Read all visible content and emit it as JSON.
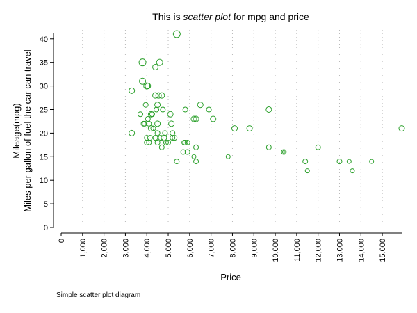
{
  "chart_data": {
    "type": "scatter",
    "title_parts": [
      {
        "text": "This is ",
        "italic": false
      },
      {
        "text": "scatter plot",
        "italic": true
      },
      {
        "text": " for mpg and price",
        "italic": false
      }
    ],
    "xlabel": "Price",
    "ylabel_lines": [
      "Mileage(mpg)",
      "Miles per gallon of fuel the car can travel"
    ],
    "note": "Simple scatter plot diagram",
    "xlim": [
      0,
      15906
    ],
    "ylim": [
      0,
      41
    ],
    "x_ticks": [
      0,
      1000,
      2000,
      3000,
      4000,
      5000,
      6000,
      7000,
      8000,
      9000,
      10000,
      11000,
      12000,
      13000,
      14000,
      15000
    ],
    "x_tick_labels": [
      "0",
      "1,000",
      "2,000",
      "3,000",
      "4,000",
      "5,000",
      "6,000",
      "7,000",
      "8,000",
      "9,000",
      "10,000",
      "11,000",
      "12,000",
      "13,000",
      "14,000",
      "15,000"
    ],
    "y_ticks": [
      0,
      5,
      10,
      15,
      20,
      25,
      30,
      35,
      40
    ],
    "y_tick_labels": [
      "0",
      "5",
      "10",
      "15",
      "20",
      "25",
      "30",
      "35",
      "40"
    ],
    "grid": "vertical dotted",
    "marker_color": "#2ca02c",
    "points": [
      {
        "x": 5400,
        "y": 41,
        "r": 5
      },
      {
        "x": 3800,
        "y": 35,
        "r": 5
      },
      {
        "x": 4600,
        "y": 35,
        "r": 4.5
      },
      {
        "x": 4400,
        "y": 34,
        "r": 4
      },
      {
        "x": 3800,
        "y": 31,
        "r": 4.5
      },
      {
        "x": 4000,
        "y": 30,
        "r": 4.5
      },
      {
        "x": 4050,
        "y": 30,
        "r": 4
      },
      {
        "x": 3300,
        "y": 29,
        "r": 4
      },
      {
        "x": 4400,
        "y": 28,
        "r": 4
      },
      {
        "x": 4550,
        "y": 28,
        "r": 4
      },
      {
        "x": 4700,
        "y": 28,
        "r": 4
      },
      {
        "x": 3950,
        "y": 26,
        "r": 3.5
      },
      {
        "x": 4500,
        "y": 26,
        "r": 4
      },
      {
        "x": 6500,
        "y": 26,
        "r": 4
      },
      {
        "x": 4450,
        "y": 25,
        "r": 3.5
      },
      {
        "x": 4750,
        "y": 25,
        "r": 3.5
      },
      {
        "x": 5800,
        "y": 25,
        "r": 3.5
      },
      {
        "x": 6900,
        "y": 25,
        "r": 3.5
      },
      {
        "x": 9700,
        "y": 25,
        "r": 4
      },
      {
        "x": 3700,
        "y": 24,
        "r": 3.5
      },
      {
        "x": 4200,
        "y": 24,
        "r": 4
      },
      {
        "x": 4250,
        "y": 24,
        "r": 3.5
      },
      {
        "x": 5100,
        "y": 24,
        "r": 4
      },
      {
        "x": 4050,
        "y": 23,
        "r": 3.5
      },
      {
        "x": 6200,
        "y": 23,
        "r": 4
      },
      {
        "x": 6300,
        "y": 23,
        "r": 4
      },
      {
        "x": 7100,
        "y": 23,
        "r": 4
      },
      {
        "x": 3850,
        "y": 22,
        "r": 3.5
      },
      {
        "x": 3900,
        "y": 22,
        "r": 3.5
      },
      {
        "x": 4100,
        "y": 22,
        "r": 3.5
      },
      {
        "x": 4500,
        "y": 22,
        "r": 4
      },
      {
        "x": 5150,
        "y": 22,
        "r": 4
      },
      {
        "x": 4200,
        "y": 21,
        "r": 4
      },
      {
        "x": 4300,
        "y": 21,
        "r": 3.5
      },
      {
        "x": 8100,
        "y": 21,
        "r": 4
      },
      {
        "x": 8800,
        "y": 21,
        "r": 4
      },
      {
        "x": 15906,
        "y": 21,
        "r": 4
      },
      {
        "x": 3300,
        "y": 20,
        "r": 4
      },
      {
        "x": 4500,
        "y": 20,
        "r": 3.5
      },
      {
        "x": 4850,
        "y": 20,
        "r": 3.5
      },
      {
        "x": 5200,
        "y": 20,
        "r": 3.5
      },
      {
        "x": 4000,
        "y": 19,
        "r": 3.5
      },
      {
        "x": 4150,
        "y": 19,
        "r": 3.5
      },
      {
        "x": 4400,
        "y": 19,
        "r": 3.5
      },
      {
        "x": 4650,
        "y": 19,
        "r": 3.5
      },
      {
        "x": 4800,
        "y": 19,
        "r": 4
      },
      {
        "x": 5200,
        "y": 19,
        "r": 3.5
      },
      {
        "x": 5300,
        "y": 19,
        "r": 3.5
      },
      {
        "x": 4000,
        "y": 18,
        "r": 3.5
      },
      {
        "x": 4100,
        "y": 18,
        "r": 3.5
      },
      {
        "x": 4500,
        "y": 18,
        "r": 3.5
      },
      {
        "x": 4900,
        "y": 18,
        "r": 3.5
      },
      {
        "x": 5000,
        "y": 18,
        "r": 3.5
      },
      {
        "x": 5750,
        "y": 18,
        "r": 3.5
      },
      {
        "x": 5800,
        "y": 18,
        "r": 3.5
      },
      {
        "x": 5900,
        "y": 18,
        "r": 3.5
      },
      {
        "x": 4700,
        "y": 17,
        "r": 3.5
      },
      {
        "x": 6300,
        "y": 17,
        "r": 3.5
      },
      {
        "x": 9700,
        "y": 17,
        "r": 3.5
      },
      {
        "x": 12000,
        "y": 17,
        "r": 3.5
      },
      {
        "x": 5700,
        "y": 16,
        "r": 3.5
      },
      {
        "x": 5900,
        "y": 16,
        "r": 3.5
      },
      {
        "x": 10400,
        "y": 16,
        "r": 3.5
      },
      {
        "x": 10400,
        "y": 16,
        "r": 2
      },
      {
        "x": 6200,
        "y": 15,
        "r": 3
      },
      {
        "x": 5400,
        "y": 14,
        "r": 3.5
      },
      {
        "x": 6300,
        "y": 14,
        "r": 3.5
      },
      {
        "x": 11400,
        "y": 14,
        "r": 3.5
      },
      {
        "x": 13000,
        "y": 14,
        "r": 3.5
      },
      {
        "x": 13450,
        "y": 14,
        "r": 3
      },
      {
        "x": 14500,
        "y": 14,
        "r": 3
      },
      {
        "x": 7800,
        "y": 15,
        "r": 3
      },
      {
        "x": 11500,
        "y": 12,
        "r": 3
      },
      {
        "x": 13600,
        "y": 12,
        "r": 3
      }
    ]
  }
}
